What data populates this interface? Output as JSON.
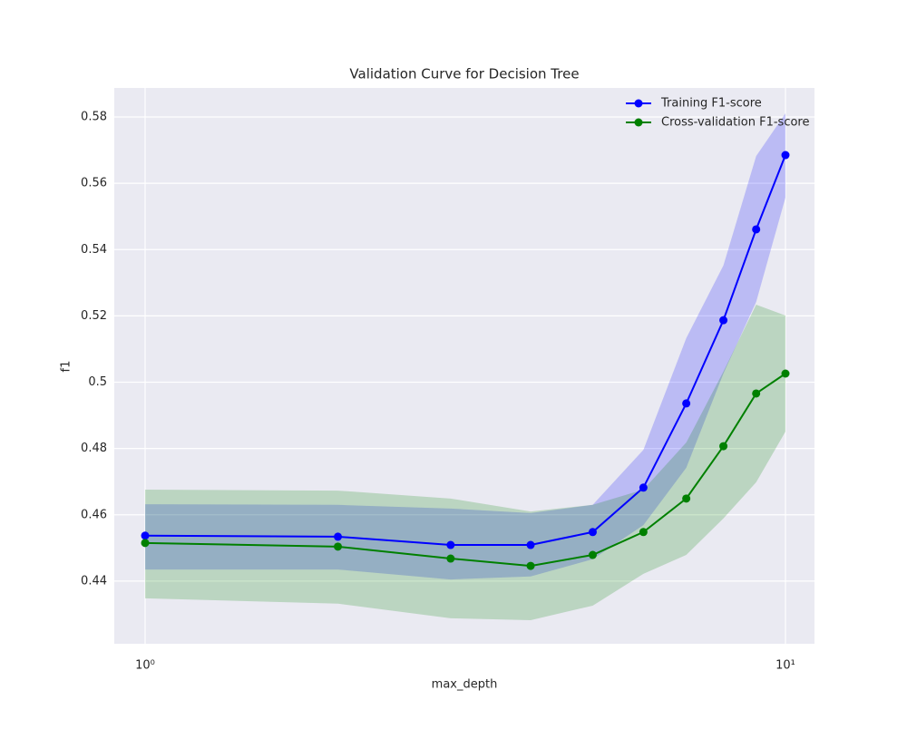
{
  "chart_data": {
    "type": "line",
    "title": "Validation Curve for Decision Tree",
    "x_label": "max_depth",
    "y_label": "f1",
    "x": [
      1,
      2,
      3,
      4,
      5,
      6,
      7,
      8,
      9,
      10
    ],
    "series": [
      {
        "name": "Training F1-score",
        "color": "#0000ff",
        "values": [
          0.4537,
          0.4534,
          0.4509,
          0.4509,
          0.4548,
          0.4682,
          0.4936,
          0.5187,
          0.5461,
          0.5685
        ],
        "upper": [
          0.4632,
          0.463,
          0.4619,
          0.4605,
          0.463,
          0.4796,
          0.5133,
          0.5352,
          0.5682,
          0.5811
        ],
        "lower": [
          0.4435,
          0.4435,
          0.4405,
          0.4414,
          0.4466,
          0.4569,
          0.4742,
          0.5026,
          0.5242,
          0.5557
        ]
      },
      {
        "name": "Cross-validation F1-score",
        "color": "#008000",
        "values": [
          0.4515,
          0.4504,
          0.4468,
          0.4446,
          0.4479,
          0.4548,
          0.4649,
          0.4807,
          0.4966,
          0.5026
        ],
        "upper": [
          0.4676,
          0.4673,
          0.4649,
          0.461,
          0.463,
          0.4676,
          0.4818,
          0.5032,
          0.5234,
          0.5201
        ],
        "lower": [
          0.4348,
          0.4332,
          0.4288,
          0.4282,
          0.4326,
          0.4422,
          0.4479,
          0.4589,
          0.4698,
          0.4851
        ]
      }
    ],
    "x_log": true,
    "xlim": [
      0.895,
      11.1
    ],
    "xticks": [
      {
        "value": 1,
        "label": "10⁰"
      },
      {
        "value": 10,
        "label": "10¹"
      }
    ],
    "ylim": [
      0.4211,
      0.58875
    ],
    "yticks": [
      0.44,
      0.46,
      0.48,
      0.5,
      0.52,
      0.54,
      0.56,
      0.58
    ],
    "grid": true,
    "legend": "upper right"
  }
}
